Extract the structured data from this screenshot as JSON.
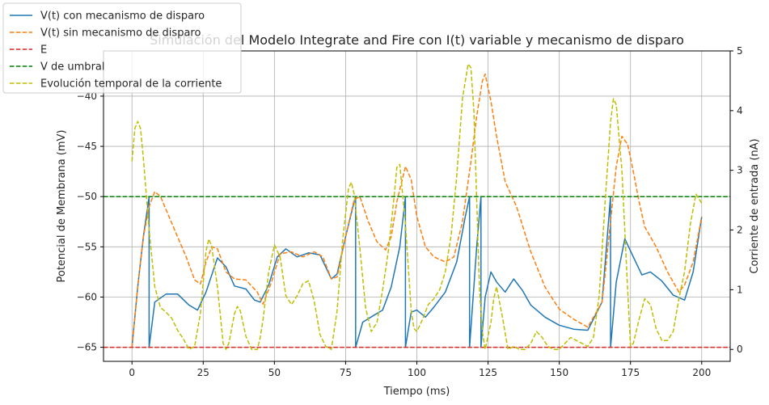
{
  "chart_data": {
    "type": "line",
    "title": "Simulación del Modelo Integrate and Fire con I(t) variable y mecanismo de disparo",
    "xlabel": "Tiempo (ms)",
    "ylabel": "Potencial de Membrana (mV)",
    "y2label": "Corriente de entrada (nA)",
    "xlim": [
      -10,
      210
    ],
    "ylim": [
      -66.4,
      -35.5
    ],
    "y2lim": [
      -0.2,
      5
    ],
    "xticks": [
      "0",
      "25",
      "50",
      "75",
      "100",
      "125",
      "150",
      "175",
      "200"
    ],
    "xtick_values": [
      0,
      25,
      50,
      75,
      100,
      125,
      150,
      175,
      200
    ],
    "yticks": [
      "−65",
      "−60",
      "−55",
      "−50",
      "−45",
      "−40"
    ],
    "ytick_values": [
      -65,
      -60,
      -55,
      -50,
      -45,
      -40
    ],
    "y2ticks": [
      "0",
      "1",
      "2",
      "3",
      "4",
      "5"
    ],
    "y2tick_values": [
      0,
      1,
      2,
      3,
      4,
      5
    ],
    "grid": true,
    "legend_position": "top-left",
    "legend": [
      {
        "label": "V(t) con mecanismo de disparo",
        "color": "#1f77b4",
        "style": "solid"
      },
      {
        "label": "V(t) sin mecanismo de disparo",
        "color": "#ff7f0e",
        "style": "dashed"
      },
      {
        "label": "E",
        "color": "#d62728",
        "style": "dashed"
      },
      {
        "label": "V de umbral",
        "color": "#008000",
        "style": "dashed"
      },
      {
        "label": "Evolución temporal de la corriente",
        "color": "#bfbf00",
        "style": "dashed"
      }
    ],
    "series": [
      {
        "name": "V(t) con mecanismo de disparo",
        "axis": "left",
        "x": [
          0,
          2,
          4,
          6,
          6.01,
          8,
          12,
          16,
          20,
          23,
          26,
          30,
          33,
          36,
          40,
          43,
          45,
          48,
          51,
          54,
          58,
          62,
          66,
          70,
          72,
          75,
          78,
          78.5,
          78.51,
          81,
          85,
          88,
          91,
          94,
          96,
          96.01,
          98,
          100,
          103,
          106,
          110,
          114,
          117,
          118.5,
          118.51,
          120,
          121,
          122.5,
          122.51,
          124,
          126,
          128,
          131,
          134,
          137,
          140,
          145,
          150,
          155,
          160,
          165,
          168,
          168.01,
          170,
          173,
          176,
          179,
          182,
          186,
          190,
          194,
          197,
          200
        ],
        "y": [
          -65,
          -59,
          -54,
          -50,
          -65,
          -60.5,
          -59.7,
          -59.7,
          -60.8,
          -61.3,
          -59.5,
          -56.1,
          -57,
          -58.9,
          -59.2,
          -60.3,
          -60.5,
          -58.8,
          -56,
          -55.2,
          -56,
          -55.6,
          -55.8,
          -58.2,
          -57.7,
          -54,
          -50.5,
          -50,
          -65,
          -62.5,
          -61.8,
          -61.3,
          -59,
          -55,
          -50,
          -65,
          -61.5,
          -61.3,
          -62,
          -61,
          -59.5,
          -56.5,
          -52,
          -50,
          -65,
          -59,
          -55,
          -50,
          -65,
          -60,
          -57.5,
          -58.5,
          -59.5,
          -58.2,
          -59.3,
          -60.8,
          -62,
          -62.8,
          -63.2,
          -63.3,
          -60.5,
          -50,
          -65,
          -58.5,
          -54.2,
          -56,
          -57.8,
          -57.5,
          -58.4,
          -59.8,
          -60.3,
          -57.5,
          -52
        ]
      },
      {
        "name": "V(t) sin mecanismo de disparo",
        "axis": "left",
        "x": [
          0,
          2,
          4,
          6,
          8,
          10,
          13,
          16,
          19,
          22,
          24,
          26,
          28,
          30,
          33,
          36,
          40,
          44,
          46,
          49,
          52,
          56,
          60,
          64,
          67,
          70,
          72,
          75,
          78,
          80,
          83,
          86,
          89,
          91,
          93,
          96,
          98,
          100,
          103,
          106,
          110,
          113,
          116,
          119,
          121,
          123,
          124,
          126,
          128,
          131,
          135,
          140,
          145,
          150,
          155,
          160,
          165,
          166,
          168,
          170,
          172,
          174,
          176,
          178,
          180,
          184,
          188,
          192,
          194,
          197,
          200
        ],
        "y": [
          -65,
          -59,
          -54,
          -51,
          -49.5,
          -50,
          -52,
          -54,
          -56,
          -58.3,
          -58.7,
          -56.5,
          -55,
          -55.2,
          -57.5,
          -58.2,
          -58.3,
          -59.5,
          -60.7,
          -58.5,
          -55.7,
          -55.5,
          -56,
          -55.5,
          -56,
          -58.2,
          -58,
          -54,
          -50.3,
          -50,
          -52.5,
          -54.5,
          -55.3,
          -54,
          -50.5,
          -47,
          -48.3,
          -52,
          -55,
          -56,
          -56.5,
          -56,
          -52.5,
          -46.5,
          -42,
          -38.5,
          -37.8,
          -40.5,
          -44,
          -48.5,
          -51,
          -55.5,
          -59,
          -61.2,
          -62.2,
          -63,
          -60.5,
          -58,
          -52.5,
          -47,
          -44,
          -44.8,
          -47.5,
          -50.5,
          -53,
          -55,
          -57.5,
          -59.5,
          -58.8,
          -56.5,
          -52
        ]
      },
      {
        "name": "E",
        "axis": "left",
        "x": [
          -10,
          210
        ],
        "y": [
          -65,
          -65
        ]
      },
      {
        "name": "V de umbral",
        "axis": "left",
        "x": [
          -10,
          210
        ],
        "y": [
          -50,
          -50
        ]
      },
      {
        "name": "Evolución temporal de la corriente",
        "axis": "right",
        "x": [
          0,
          1,
          2,
          3,
          4,
          6,
          8,
          10,
          12,
          14,
          16,
          18,
          20,
          22,
          24,
          26,
          27,
          28,
          30,
          32,
          33,
          34,
          36,
          37,
          38,
          40,
          42,
          44,
          45,
          46,
          48,
          50,
          52,
          54,
          56,
          58,
          60,
          62,
          64,
          66,
          68,
          70,
          72,
          74,
          76,
          77,
          78,
          80,
          82,
          84,
          86,
          88,
          90,
          92,
          93,
          94,
          96,
          98,
          99,
          100,
          102,
          104,
          106,
          108,
          110,
          112,
          114,
          116,
          118,
          119,
          120,
          122,
          123,
          124,
          126,
          127,
          128,
          130,
          132,
          134,
          136,
          138,
          140,
          142,
          144,
          146,
          148,
          150,
          152,
          154,
          156,
          158,
          160,
          162,
          164,
          166,
          168,
          169,
          170,
          172,
          174,
          175,
          176,
          178,
          180,
          182,
          184,
          186,
          188,
          190,
          192,
          194,
          196,
          198,
          200
        ],
        "y": [
          3.15,
          3.7,
          3.82,
          3.7,
          3.2,
          2.0,
          1.05,
          0.7,
          0.62,
          0.52,
          0.32,
          0.18,
          0.0,
          0.05,
          0.6,
          1.65,
          1.85,
          1.72,
          1.05,
          0.1,
          0.0,
          0.1,
          0.6,
          0.72,
          0.65,
          0.22,
          0.0,
          0.0,
          0.2,
          0.5,
          1.3,
          1.75,
          1.55,
          0.9,
          0.75,
          0.9,
          1.1,
          1.15,
          0.8,
          0.25,
          0.05,
          0.0,
          0.65,
          1.85,
          2.7,
          2.8,
          2.6,
          1.7,
          0.7,
          0.3,
          0.45,
          1.0,
          1.65,
          2.55,
          3.05,
          3.1,
          2.1,
          0.65,
          0.35,
          0.3,
          0.5,
          0.75,
          0.85,
          1.0,
          1.3,
          1.9,
          2.9,
          4.2,
          4.78,
          4.72,
          4.0,
          1.0,
          0.3,
          0.0,
          0.45,
          0.85,
          1.05,
          0.55,
          0.0,
          0.05,
          0.0,
          0.0,
          0.1,
          0.3,
          0.2,
          0.05,
          0.0,
          0.0,
          0.1,
          0.2,
          0.15,
          0.1,
          0.05,
          0.2,
          0.9,
          2.4,
          3.8,
          4.2,
          4.1,
          3.0,
          1.0,
          0.05,
          0.1,
          0.5,
          0.85,
          0.75,
          0.35,
          0.15,
          0.15,
          0.3,
          0.85,
          1.3,
          2.1,
          2.6,
          2.45
        ]
      }
    ]
  }
}
